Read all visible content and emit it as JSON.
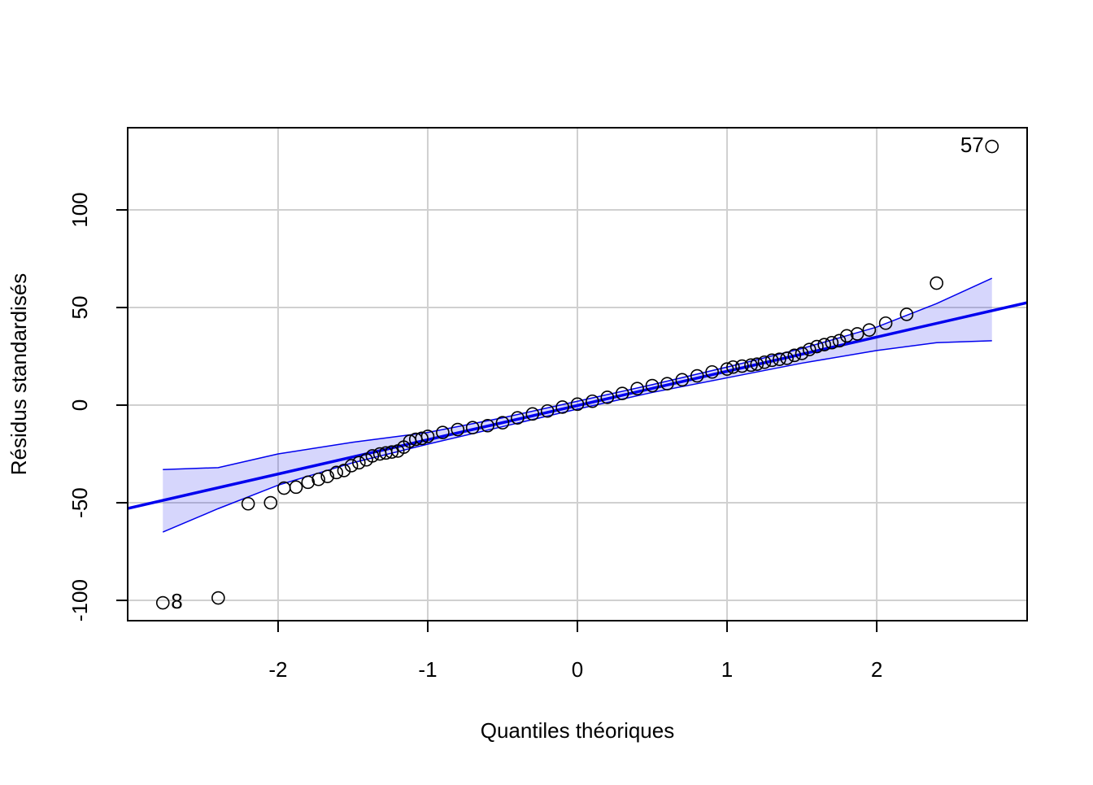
{
  "chart_data": {
    "type": "qqplot",
    "xlabel": "Quantiles théoriques",
    "ylabel": "Résidus standardisés",
    "xlim": [
      -3.005,
      3.005
    ],
    "ylim": [
      -110.4,
      142.1
    ],
    "xticks": [
      -2,
      -1,
      0,
      1,
      2
    ],
    "yticks": [
      -100,
      -50,
      0,
      50,
      100
    ],
    "grid": true,
    "point_color": "#000000",
    "line_color": "#0000ee",
    "band_color": "#0000ee",
    "x": [
      -2.77,
      -2.4,
      -2.2,
      -2.05,
      -1.96,
      -1.88,
      -1.8,
      -1.73,
      -1.67,
      -1.61,
      -1.56,
      -1.51,
      -1.46,
      -1.41,
      -1.37,
      -1.32,
      -1.28,
      -1.24,
      -1.2,
      -1.16,
      -1.12,
      -1.08,
      -1.04,
      -1.0,
      -0.9,
      -0.8,
      -0.7,
      -0.6,
      -0.5,
      -0.4,
      -0.3,
      -0.2,
      -0.1,
      0.0,
      0.1,
      0.2,
      0.3,
      0.4,
      0.5,
      0.6,
      0.7,
      0.8,
      0.9,
      1.0,
      1.04,
      1.1,
      1.16,
      1.2,
      1.25,
      1.3,
      1.35,
      1.4,
      1.45,
      1.5,
      1.55,
      1.6,
      1.65,
      1.7,
      1.75,
      1.8,
      1.87,
      1.95,
      2.06,
      2.2,
      2.4,
      2.77
    ],
    "values": [
      -101.25,
      -98.75,
      -50.5,
      -50,
      -42.5,
      -42,
      -39.5,
      -38,
      -36.5,
      -34.5,
      -33.5,
      -31,
      -29.5,
      -28,
      -26,
      -25,
      -24.5,
      -24,
      -23.5,
      -21.5,
      -18.5,
      -17.5,
      -17,
      -16,
      -14,
      -12.5,
      -11.5,
      -10.5,
      -9,
      -6.5,
      -4.5,
      -3,
      -1,
      0.5,
      2,
      4,
      6,
      8.5,
      10,
      11,
      13,
      15,
      17,
      18.5,
      19.5,
      20,
      20.5,
      21,
      22,
      23,
      23.5,
      24,
      25.5,
      26.5,
      28.5,
      30,
      31,
      32,
      33,
      35.5,
      36.5,
      38.5,
      42,
      46.5,
      62.5,
      132.5
    ],
    "point_labels": [
      "8",
      null,
      null,
      null,
      null,
      null,
      null,
      null,
      null,
      null,
      null,
      null,
      null,
      null,
      null,
      null,
      null,
      null,
      null,
      null,
      null,
      null,
      null,
      null,
      null,
      null,
      null,
      null,
      null,
      null,
      null,
      null,
      null,
      null,
      null,
      null,
      null,
      null,
      null,
      null,
      null,
      null,
      null,
      null,
      null,
      null,
      null,
      null,
      null,
      null,
      null,
      null,
      null,
      null,
      null,
      null,
      null,
      null,
      null,
      null,
      null,
      null,
      null,
      null,
      null,
      "57"
    ],
    "reference_line": {
      "x": [
        -3.005,
        3.005
      ],
      "y": [
        -52.9,
        52.5
      ]
    },
    "band": {
      "x": [
        -2.77,
        -2.4,
        -2.0,
        -1.5,
        -1.0,
        -0.5,
        0,
        0.5,
        1.0,
        1.5,
        2.0,
        2.4,
        2.77
      ],
      "upper": [
        -33,
        -32,
        -25,
        -19,
        -14,
        -6.5,
        2,
        10.5,
        19.5,
        29,
        40,
        52,
        65
      ],
      "lower": [
        -65,
        -53,
        -41,
        -29.5,
        -20,
        -11,
        -2,
        6.5,
        14,
        21.5,
        28,
        32,
        33
      ]
    }
  }
}
